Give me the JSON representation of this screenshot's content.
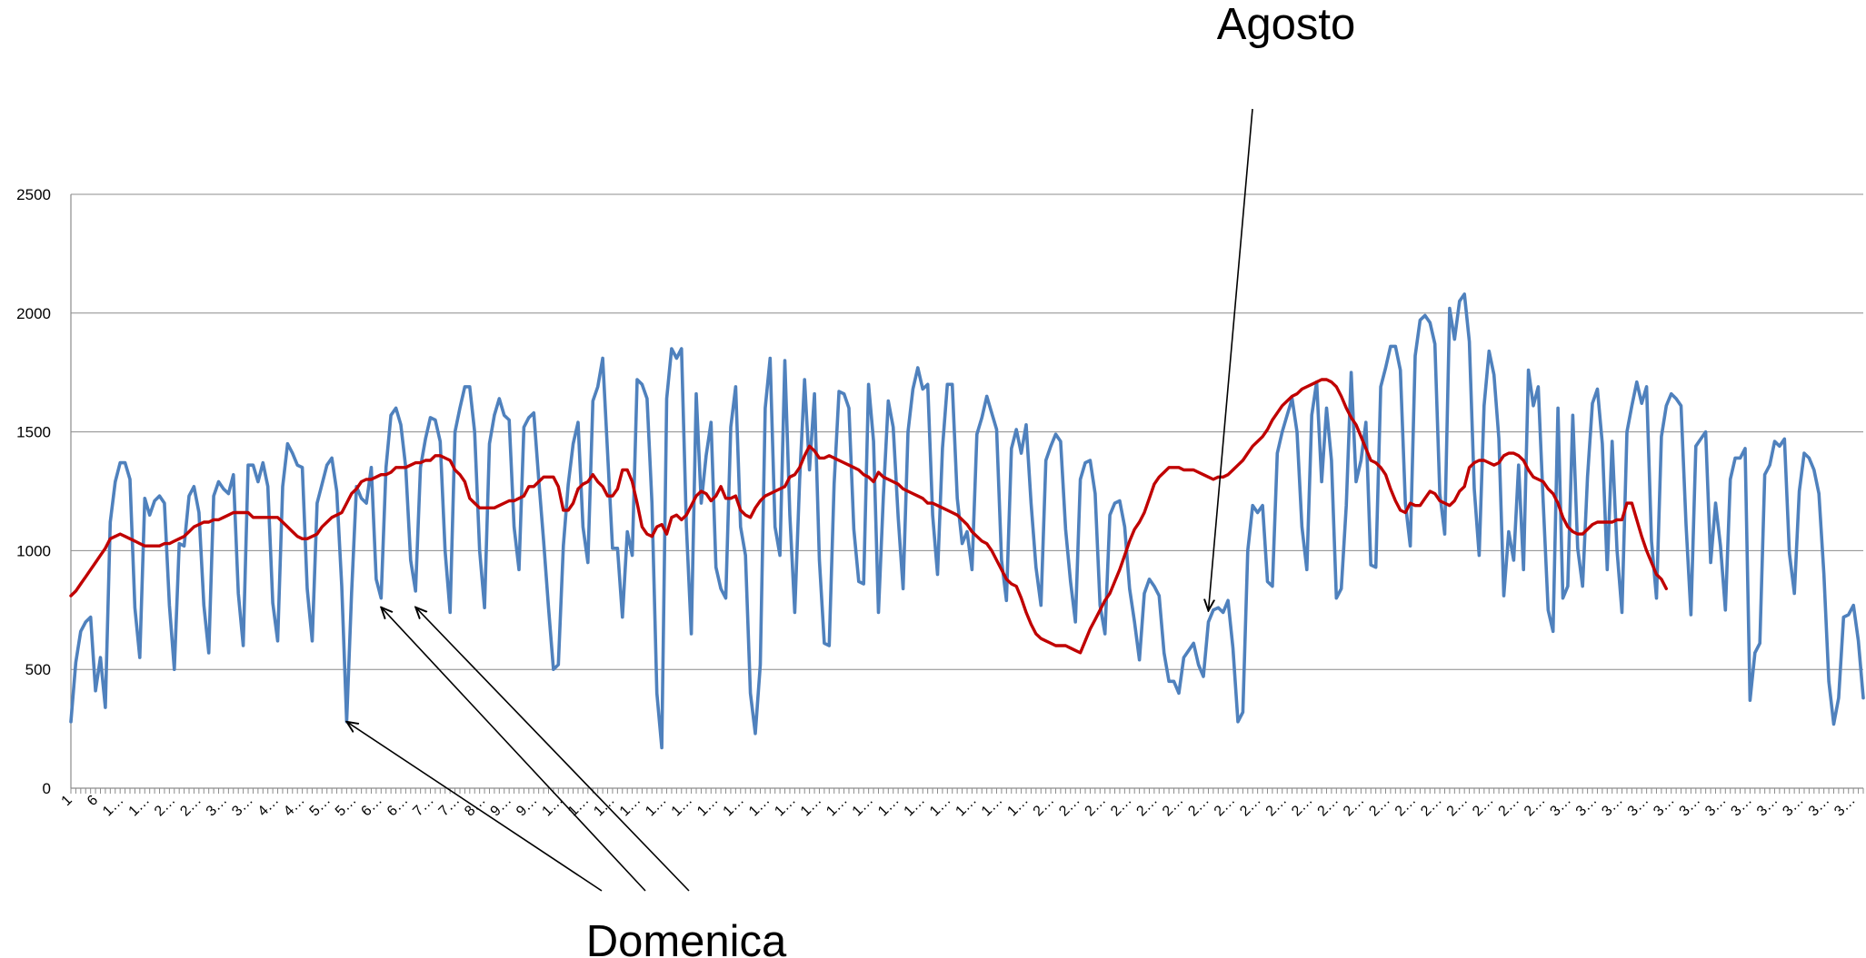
{
  "chart_data": {
    "type": "line",
    "title": "",
    "xlabel": "",
    "ylabel": "",
    "ylim": [
      0,
      2500
    ],
    "yticks": [
      0,
      500,
      1000,
      1500,
      2000,
      2500
    ],
    "grid": "horizontal",
    "legend": "none",
    "x_tick_labels": [
      "1",
      "6",
      "1…",
      "1…",
      "2…",
      "2…",
      "3…",
      "3…",
      "4…",
      "4…",
      "5…",
      "5…",
      "6…",
      "6…",
      "7…",
      "7…",
      "8…",
      "9…",
      "9…",
      "1…",
      "1…",
      "1…",
      "1…",
      "1…",
      "1…",
      "1…",
      "1…",
      "1…",
      "1…",
      "1…",
      "1…",
      "1…",
      "1…",
      "1…",
      "1…",
      "1…",
      "1…",
      "1…",
      "2…",
      "2…",
      "2…",
      "2…",
      "2…",
      "2…",
      "2…",
      "2…",
      "2…",
      "2…",
      "2…",
      "2…",
      "2…",
      "2…",
      "2…",
      "2…",
      "2…",
      "2…",
      "2…",
      "2…",
      "3…",
      "3…",
      "3…",
      "3…",
      "3…",
      "3…",
      "3…",
      "3…",
      "3…",
      "3…",
      "3…",
      "3…"
    ],
    "series": [
      {
        "name": "",
        "color": "#4f81bd",
        "values": [
          280,
          530,
          660,
          700,
          720,
          410,
          550,
          340,
          1120,
          1290,
          1370,
          1370,
          1300,
          760,
          550,
          1220,
          1150,
          1210,
          1230,
          1200,
          770,
          500,
          1030,
          1020,
          1230,
          1270,
          1160,
          770,
          570,
          1230,
          1290,
          1260,
          1240,
          1320,
          820,
          600,
          1360,
          1360,
          1290,
          1370,
          1270,
          780,
          620,
          1270,
          1450,
          1410,
          1360,
          1350,
          840,
          620,
          1200,
          1280,
          1360,
          1390,
          1250,
          850,
          280,
          820,
          1270,
          1220,
          1200,
          1350,
          880,
          800,
          1350,
          1570,
          1600,
          1530,
          1350,
          960,
          830,
          1350,
          1470,
          1560,
          1550,
          1460,
          1000,
          740,
          1500,
          1600,
          1690,
          1690,
          1500,
          1000,
          760,
          1450,
          1570,
          1640,
          1570,
          1550,
          1100,
          920,
          1520,
          1560,
          1580,
          1300,
          1040,
          760,
          500,
          520,
          1020,
          1280,
          1450,
          1540,
          1100,
          950,
          1630,
          1690,
          1810,
          1410,
          1010,
          1010,
          720,
          1080,
          980,
          1720,
          1700,
          1640,
          1200,
          400,
          170,
          1640,
          1850,
          1810,
          1850,
          1100,
          650,
          1660,
          1200,
          1400,
          1540,
          930,
          840,
          800,
          1520,
          1690,
          1100,
          980,
          400,
          230,
          520,
          1600,
          1810,
          1100,
          980,
          1800,
          1150,
          740,
          1300,
          1720,
          1340,
          1660,
          960,
          610,
          600,
          1280,
          1670,
          1660,
          1600,
          1090,
          870,
          860,
          1700,
          1460,
          740,
          1230,
          1630,
          1520,
          1140,
          840,
          1500,
          1680,
          1770,
          1680,
          1700,
          1150,
          900,
          1430,
          1700,
          1700,
          1220,
          1030,
          1080,
          920,
          1490,
          1560,
          1650,
          1580,
          1510,
          960,
          790,
          1430,
          1510,
          1410,
          1530,
          1200,
          930,
          770,
          1380,
          1440,
          1490,
          1460,
          1090,
          870,
          700,
          1300,
          1370,
          1380,
          1240,
          770,
          650,
          1150,
          1200,
          1210,
          1100,
          840,
          700,
          540,
          820,
          880,
          850,
          810,
          570,
          450,
          450,
          400,
          550,
          580,
          610,
          520,
          470,
          700,
          750,
          760,
          740,
          790,
          590,
          280,
          320,
          1000,
          1190,
          1160,
          1190,
          870,
          850,
          1410,
          1500,
          1570,
          1640,
          1500,
          1100,
          920,
          1570,
          1710,
          1290,
          1600,
          1380,
          800,
          840,
          1190,
          1750,
          1290,
          1380,
          1540,
          940,
          930,
          1690,
          1770,
          1860,
          1860,
          1760,
          1200,
          1020,
          1820,
          1970,
          1990,
          1960,
          1870,
          1240,
          1070,
          2020,
          1890,
          2050,
          2080,
          1880,
          1260,
          980,
          1610,
          1840,
          1740,
          1470,
          810,
          1080,
          960,
          1360,
          920,
          1760,
          1610,
          1690,
          1200,
          750,
          660,
          1600,
          800,
          850,
          1570,
          1010,
          850,
          1310,
          1620,
          1680,
          1450,
          920,
          1460,
          1000,
          740,
          1500,
          1610,
          1710,
          1620,
          1690,
          1040,
          800,
          1480,
          1610,
          1660,
          1640,
          1610,
          1110,
          730,
          1440,
          1470,
          1500,
          950,
          1200,
          1020,
          750,
          1300,
          1390,
          1390,
          1430,
          370,
          570,
          610,
          1320,
          1360,
          1460,
          1440,
          1470,
          990,
          820,
          1250,
          1410,
          1390,
          1340,
          1240,
          900,
          450,
          270,
          380,
          720,
          730,
          770,
          620,
          380
        ]
      },
      {
        "name": "",
        "color": "#c00000",
        "values": [
          810,
          830,
          860,
          890,
          920,
          950,
          980,
          1010,
          1050,
          1060,
          1070,
          1060,
          1050,
          1040,
          1030,
          1020,
          1020,
          1020,
          1020,
          1030,
          1030,
          1040,
          1050,
          1060,
          1080,
          1100,
          1110,
          1120,
          1120,
          1130,
          1130,
          1140,
          1150,
          1160,
          1160,
          1160,
          1160,
          1140,
          1140,
          1140,
          1140,
          1140,
          1140,
          1120,
          1100,
          1080,
          1060,
          1050,
          1050,
          1060,
          1070,
          1100,
          1120,
          1140,
          1150,
          1160,
          1200,
          1240,
          1260,
          1290,
          1300,
          1300,
          1310,
          1320,
          1320,
          1330,
          1350,
          1350,
          1350,
          1360,
          1370,
          1370,
          1380,
          1380,
          1400,
          1400,
          1390,
          1380,
          1340,
          1320,
          1290,
          1220,
          1200,
          1180,
          1180,
          1180,
          1180,
          1190,
          1200,
          1210,
          1210,
          1220,
          1230,
          1270,
          1270,
          1290,
          1310,
          1310,
          1310,
          1270,
          1170,
          1170,
          1200,
          1260,
          1280,
          1290,
          1320,
          1290,
          1270,
          1230,
          1230,
          1260,
          1340,
          1340,
          1290,
          1200,
          1100,
          1070,
          1060,
          1100,
          1110,
          1070,
          1140,
          1150,
          1130,
          1150,
          1190,
          1230,
          1250,
          1240,
          1210,
          1230,
          1270,
          1220,
          1220,
          1230,
          1170,
          1150,
          1140,
          1180,
          1210,
          1230,
          1240,
          1250,
          1260,
          1270,
          1310,
          1320,
          1350,
          1400,
          1440,
          1420,
          1390,
          1390,
          1400,
          1390,
          1380,
          1370,
          1360,
          1350,
          1340,
          1320,
          1310,
          1290,
          1330,
          1310,
          1300,
          1290,
          1280,
          1260,
          1250,
          1240,
          1230,
          1220,
          1200,
          1200,
          1190,
          1180,
          1170,
          1160,
          1150,
          1130,
          1110,
          1080,
          1060,
          1040,
          1030,
          1000,
          960,
          920,
          880,
          860,
          850,
          800,
          740,
          690,
          650,
          630,
          620,
          610,
          600,
          600,
          600,
          590,
          580,
          570,
          620,
          670,
          710,
          750,
          790,
          820,
          870,
          920,
          980,
          1040,
          1090,
          1120,
          1160,
          1220,
          1280,
          1310,
          1330,
          1350,
          1350,
          1350,
          1340,
          1340,
          1340,
          1330,
          1320,
          1310,
          1300,
          1310,
          1310,
          1320,
          1340,
          1360,
          1380,
          1410,
          1440,
          1460,
          1480,
          1510,
          1550,
          1580,
          1610,
          1630,
          1650,
          1660,
          1680,
          1690,
          1700,
          1710,
          1720,
          1720,
          1710,
          1690,
          1650,
          1600,
          1560,
          1530,
          1480,
          1430,
          1380,
          1370,
          1350,
          1320,
          1260,
          1210,
          1170,
          1160,
          1200,
          1190,
          1190,
          1220,
          1250,
          1240,
          1210,
          1200,
          1190,
          1210,
          1250,
          1270,
          1350,
          1370,
          1380,
          1380,
          1370,
          1360,
          1370,
          1400,
          1410,
          1410,
          1400,
          1380,
          1340,
          1310,
          1300,
          1290,
          1260,
          1240,
          1200,
          1140,
          1100,
          1080,
          1070,
          1070,
          1090,
          1110,
          1120,
          1120,
          1120,
          1120,
          1130,
          1130,
          1200,
          1200,
          1130,
          1060,
          1000,
          950,
          900,
          880,
          840
        ]
      }
    ],
    "annotations": [
      {
        "text": "Agosto",
        "target_x": 231,
        "target_y": 900
      },
      {
        "text": "Domenica",
        "targets": [
          {
            "x": 56,
            "y": 280
          },
          {
            "x": 63,
            "y": 800
          },
          {
            "x": 70,
            "y": 800
          }
        ]
      }
    ]
  }
}
